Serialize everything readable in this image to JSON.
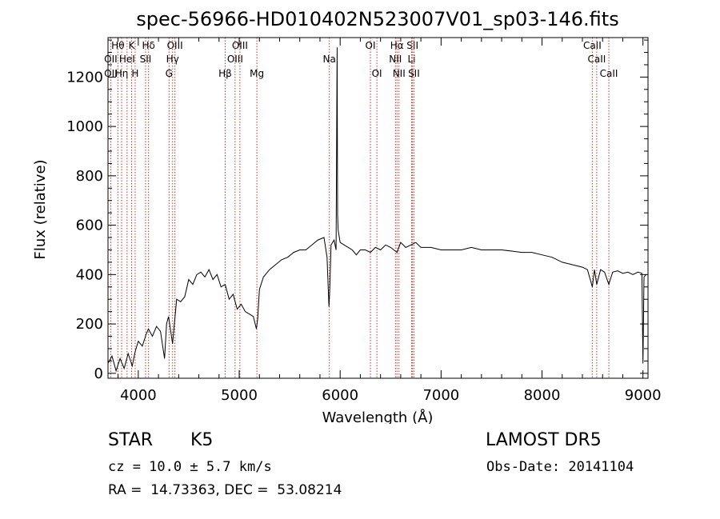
{
  "title": "spec-56966-HD010402N523007V01_sp03-146.fits",
  "info": {
    "object_type": "STAR",
    "subclass": "K5",
    "survey": "LAMOST DR5",
    "redshift": "cz = 10.0 ± 5.7 km/s",
    "obs_date": "Obs-Date: 20141104",
    "coords": "RA =  14.73363, DEC =  53.08214"
  },
  "chart_data": {
    "type": "line",
    "title": "spec-56966-HD010402N523007V01_sp03-146.fits",
    "xlabel": "Wavelength (Å)",
    "ylabel": "Flux (relative)",
    "xlim": [
      3700,
      9050
    ],
    "ylim": [
      -20,
      1360
    ],
    "x_ticks": [
      4000,
      5000,
      6000,
      7000,
      8000,
      9000
    ],
    "y_ticks": [
      0,
      200,
      400,
      600,
      800,
      1000,
      1200
    ],
    "grid": false,
    "series": [
      {
        "x": [
          3700,
          3740,
          3780,
          3820,
          3860,
          3900,
          3940,
          3970,
          4000,
          4040,
          4080,
          4100,
          4140,
          4180,
          4220,
          4260,
          4280,
          4300,
          4340,
          4380,
          4420,
          4460,
          4500,
          4540,
          4580,
          4620,
          4660,
          4700,
          4740,
          4780,
          4820,
          4861,
          4900,
          4940,
          4980,
          5020,
          5060,
          5100,
          5140,
          5170,
          5183,
          5200,
          5240,
          5300,
          5360,
          5420,
          5480,
          5540,
          5600,
          5660,
          5720,
          5780,
          5840,
          5870,
          5889,
          5896,
          5910,
          5940,
          5960,
          5970,
          5975,
          5980,
          6000,
          6040,
          6080,
          6120,
          6160,
          6200,
          6250,
          6300,
          6350,
          6400,
          6450,
          6500,
          6563,
          6600,
          6650,
          6700,
          6750,
          6800,
          6900,
          7000,
          7100,
          7200,
          7300,
          7400,
          7500,
          7600,
          7700,
          7800,
          7900,
          8000,
          8100,
          8200,
          8300,
          8400,
          8450,
          8498,
          8520,
          8542,
          8580,
          8620,
          8662,
          8700,
          8750,
          8800,
          8850,
          8900,
          8950,
          8990,
          9000,
          9010,
          9030
        ],
        "y": [
          40,
          70,
          10,
          60,
          20,
          80,
          30,
          90,
          130,
          110,
          160,
          180,
          150,
          190,
          170,
          60,
          200,
          230,
          120,
          300,
          290,
          310,
          380,
          360,
          400,
          410,
          390,
          420,
          380,
          400,
          350,
          360,
          300,
          320,
          260,
          280,
          250,
          240,
          230,
          180,
          220,
          340,
          390,
          420,
          440,
          460,
          470,
          490,
          500,
          500,
          520,
          540,
          550,
          470,
          270,
          330,
          520,
          540,
          500,
          1320,
          640,
          580,
          530,
          520,
          510,
          500,
          480,
          500,
          500,
          490,
          510,
          500,
          520,
          510,
          490,
          530,
          510,
          520,
          530,
          510,
          510,
          500,
          500,
          500,
          510,
          500,
          500,
          500,
          495,
          490,
          490,
          480,
          470,
          450,
          440,
          430,
          420,
          350,
          420,
          360,
          420,
          410,
          360,
          410,
          415,
          405,
          410,
          400,
          410,
          405,
          40,
          390,
          400
        ]
      }
    ],
    "line_markers": [
      {
        "label": "Hθ",
        "x": 3798,
        "row": 0
      },
      {
        "label": "K",
        "x": 3934,
        "row": 0
      },
      {
        "label": "Hδ",
        "x": 4102,
        "row": 0
      },
      {
        "label": "OIII",
        "x": 4363,
        "row": 0
      },
      {
        "label": "OIII",
        "x": 5007,
        "row": 0
      },
      {
        "label": "OI",
        "x": 6300,
        "row": 0
      },
      {
        "label": "Hα",
        "x": 6563,
        "row": 0
      },
      {
        "label": "SII",
        "x": 6717,
        "row": 0
      },
      {
        "label": "CaII",
        "x": 8498,
        "row": 0
      },
      {
        "label": "OII",
        "x": 3727,
        "row": 1
      },
      {
        "label": "HeI",
        "x": 3889,
        "row": 1
      },
      {
        "label": "SII",
        "x": 4072,
        "row": 1
      },
      {
        "label": "Hγ",
        "x": 4340,
        "row": 1
      },
      {
        "label": "OIII",
        "x": 4959,
        "row": 1
      },
      {
        "label": "Na",
        "x": 5893,
        "row": 1
      },
      {
        "label": "NII",
        "x": 6548,
        "row": 1
      },
      {
        "label": "Li",
        "x": 6708,
        "row": 1
      },
      {
        "label": "CaII",
        "x": 8542,
        "row": 1
      },
      {
        "label": "OII",
        "x": 3727,
        "row": 2
      },
      {
        "label": "Hη",
        "x": 3835,
        "row": 2
      },
      {
        "label": "H",
        "x": 3969,
        "row": 2
      },
      {
        "label": "G",
        "x": 4305,
        "row": 2
      },
      {
        "label": "Hβ",
        "x": 4861,
        "row": 2
      },
      {
        "label": "Mg",
        "x": 5175,
        "row": 2
      },
      {
        "label": "OI",
        "x": 6364,
        "row": 2
      },
      {
        "label": "NII",
        "x": 6583,
        "row": 2
      },
      {
        "label": "SII",
        "x": 6731,
        "row": 2
      },
      {
        "label": "CaII",
        "x": 8662,
        "row": 2
      }
    ]
  }
}
